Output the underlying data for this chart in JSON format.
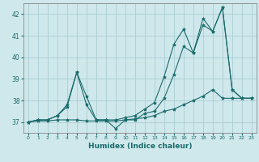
{
  "xlabel": "Humidex (Indice chaleur)",
  "ylabel": "",
  "bg_color": "#cfe8ec",
  "grid_color": "#aacdd4",
  "line_color": "#1a6b6b",
  "xlim": [
    -0.5,
    23.5
  ],
  "ylim": [
    36.5,
    42.5
  ],
  "xticks": [
    0,
    1,
    2,
    3,
    4,
    5,
    6,
    7,
    8,
    9,
    10,
    11,
    12,
    13,
    14,
    15,
    16,
    17,
    18,
    19,
    20,
    21,
    22,
    23
  ],
  "yticks": [
    37,
    38,
    39,
    40,
    41,
    42
  ],
  "series": [
    {
      "x": [
        0,
        1,
        2,
        3,
        4,
        5,
        6,
        7,
        8,
        9,
        10,
        11,
        12,
        13,
        14,
        15,
        16,
        17,
        18,
        19,
        20,
        21,
        22,
        23
      ],
      "y": [
        37,
        37.05,
        37.05,
        37.1,
        37.1,
        37.1,
        37.05,
        37.05,
        37.05,
        37.05,
        37.1,
        37.15,
        37.2,
        37.3,
        37.5,
        37.6,
        37.8,
        38.0,
        38.2,
        38.5,
        38.1,
        38.1,
        38.1,
        38.1
      ]
    },
    {
      "x": [
        0,
        1,
        2,
        3,
        4,
        5,
        6,
        7,
        8,
        9,
        10,
        11,
        12,
        13,
        14,
        15,
        16,
        17,
        18,
        19,
        20,
        21,
        22,
        23
      ],
      "y": [
        37,
        37.1,
        37.1,
        37.3,
        37.7,
        39.3,
        37.8,
        37.1,
        37.1,
        36.7,
        37.1,
        37.1,
        37.4,
        37.5,
        38.1,
        39.2,
        40.5,
        40.2,
        41.8,
        41.2,
        42.3,
        38.5,
        38.1,
        38.1
      ]
    },
    {
      "x": [
        0,
        1,
        2,
        3,
        4,
        5,
        6,
        7,
        8,
        9,
        10,
        11,
        12,
        13,
        14,
        15,
        16,
        17,
        18,
        19,
        20,
        21,
        22,
        23
      ],
      "y": [
        37,
        37.1,
        37.1,
        37.3,
        37.8,
        39.3,
        38.2,
        37.1,
        37.1,
        37.1,
        37.2,
        37.3,
        37.6,
        37.9,
        39.1,
        40.6,
        41.3,
        40.2,
        41.5,
        41.2,
        42.3,
        38.5,
        38.1,
        38.1
      ]
    }
  ]
}
